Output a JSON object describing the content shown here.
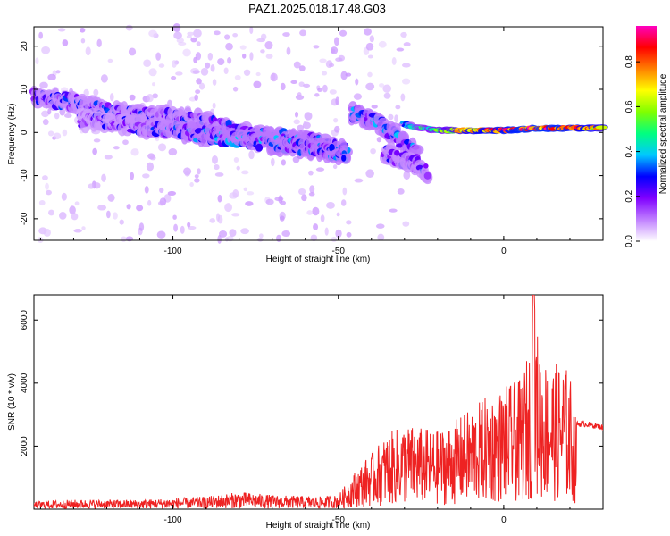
{
  "figure_title": "PAZ1.2025.018.17.48.G03",
  "colorbar": {
    "label": "Normalized spectral amplitude",
    "ticks": [
      "0.0",
      "0.2",
      "0.4",
      "0.6",
      "0.8"
    ],
    "tick_values": [
      0.0,
      0.2,
      0.4,
      0.6,
      0.8
    ],
    "range": [
      0,
      0.96
    ],
    "colors": [
      "#ffffff",
      "#c080ff",
      "#8000ff",
      "#0000ff",
      "#00c8ff",
      "#00ff80",
      "#80ff00",
      "#ffff00",
      "#ff8000",
      "#ff0000",
      "#ff00c0"
    ]
  },
  "chart_data": [
    {
      "type": "heatmap",
      "name": "spectrogram",
      "xlabel": "Height of straight line (km)",
      "ylabel": "Frequency (Hz)",
      "xlim": [
        -142,
        30
      ],
      "ylim": [
        -25,
        24.5
      ],
      "x_ticks": [
        "-100",
        "-50",
        "0"
      ],
      "x_tick_values": [
        -100,
        -50,
        0
      ],
      "y_ticks": [
        "20",
        "10",
        "0",
        "-10",
        "-20"
      ],
      "y_tick_values": [
        20,
        10,
        0,
        -10,
        -20
      ],
      "ridges": [
        {
          "x": [
            -142,
            -130,
            -120,
            -110,
            -100,
            -90,
            -80,
            -70,
            -60,
            -50,
            -47
          ],
          "y": [
            8,
            7,
            5,
            4,
            3.5,
            2.5,
            0,
            -1,
            -2,
            -3.5,
            -5
          ]
        },
        {
          "x": [
            -128,
            -115,
            -105,
            -95,
            -85,
            -75,
            -65,
            -55,
            -48
          ],
          "y": [
            3,
            2,
            1,
            0,
            -1,
            -2,
            -3,
            -4,
            -5
          ]
        },
        {
          "x": [
            -46,
            -40,
            -35,
            -30,
            -26
          ],
          "y": [
            4.5,
            3,
            0.5,
            -2.5,
            -5
          ]
        },
        {
          "x": [
            -36,
            -32,
            -28,
            -25,
            -23
          ],
          "y": [
            -4.5,
            -6,
            -7,
            -8,
            -9.5
          ]
        },
        {
          "x": [
            -30,
            -25,
            -20,
            -10,
            0,
            10,
            20,
            30
          ],
          "y": [
            2,
            1,
            0.5,
            0.5,
            0.5,
            1,
            1,
            1
          ]
        }
      ],
      "ridge_amplitude": [
        {
          "x": [
            -142,
            -100,
            -60,
            -47
          ],
          "a": [
            0.25,
            0.25,
            0.3,
            0.3
          ]
        },
        {
          "x": [
            -128,
            -90,
            -48
          ],
          "a": [
            0.2,
            0.3,
            0.3
          ]
        },
        {
          "x": [
            -46,
            -26
          ],
          "a": [
            0.3,
            0.3
          ]
        },
        {
          "x": [
            -36,
            -23
          ],
          "a": [
            0.25,
            0.25
          ]
        },
        {
          "x": [
            -30,
            -20,
            -10,
            0,
            10,
            20,
            30
          ],
          "a": [
            0.35,
            0.55,
            0.8,
            0.85,
            0.9,
            0.85,
            0.75
          ]
        }
      ]
    },
    {
      "type": "line",
      "name": "snr",
      "xlabel": "Height of straight line (km)",
      "ylabel": "SNR (10 * v/v)",
      "xlim": [
        -142,
        30
      ],
      "ylim": [
        0,
        6800
      ],
      "x_ticks": [
        "-100",
        "-50",
        "0"
      ],
      "x_tick_values": [
        -100,
        -50,
        0
      ],
      "y_ticks": [
        "2000",
        "4000",
        "6000"
      ],
      "y_tick_values": [
        2000,
        4000,
        6000
      ],
      "color": "#ee2222",
      "envelope": {
        "x": [
          -142,
          -130,
          -110,
          -90,
          -80,
          -70,
          -55,
          -50,
          -45,
          -40,
          -35,
          -30,
          -25,
          -20,
          -15,
          -10,
          -5,
          0,
          5,
          8,
          9,
          10,
          12,
          15,
          18,
          20,
          22,
          25,
          30
        ],
        "y": [
          250,
          300,
          300,
          400,
          550,
          450,
          400,
          450,
          1200,
          1800,
          2400,
          2700,
          2600,
          2500,
          2800,
          3200,
          3600,
          3900,
          4100,
          5200,
          6800,
          5800,
          4800,
          4600,
          4700,
          4300,
          2700,
          2700,
          2600
        ]
      }
    }
  ]
}
